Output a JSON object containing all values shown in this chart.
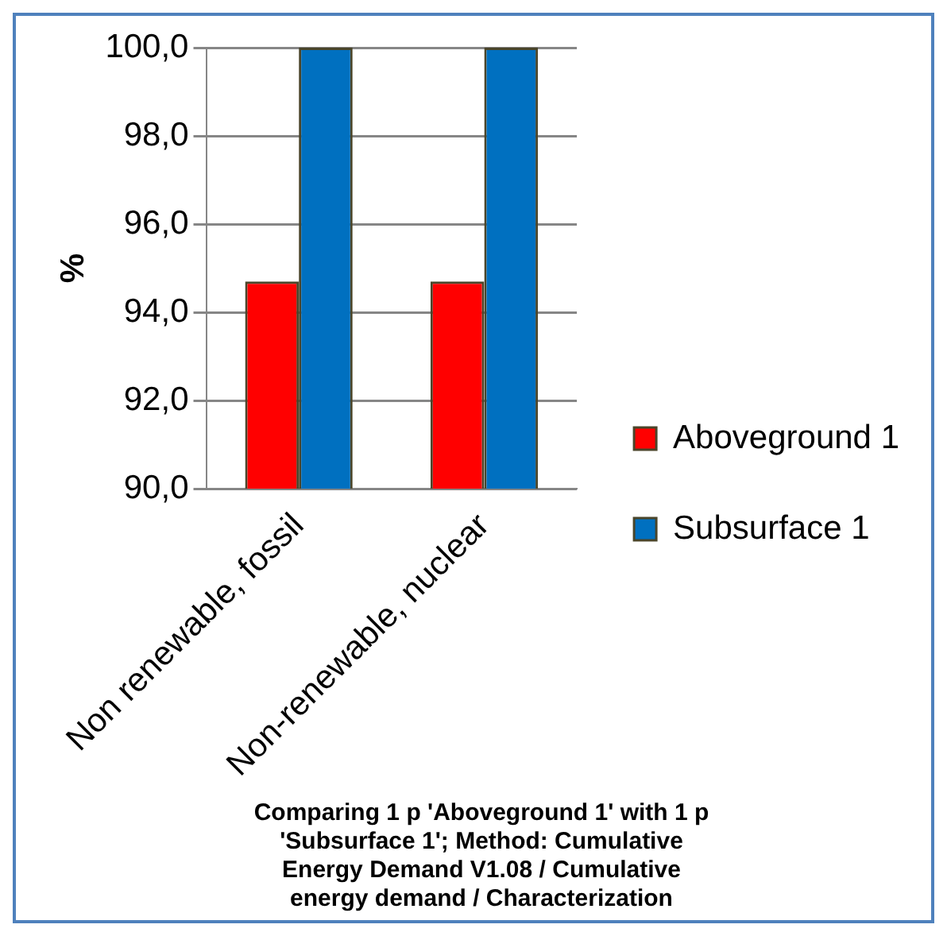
{
  "chart_data": {
    "type": "bar",
    "title": "Comparing 1 p 'Aboveground 1' with 1 p 'Subsurface 1'; Method: Cumulative Energy Demand V1.08 / Cumulative energy demand / Characterization",
    "ylabel": "%",
    "categories": [
      "Non renewable, fossil",
      "Non-renewable, nuclear"
    ],
    "series": [
      {
        "name": "Aboveground 1",
        "color": "#ff0000",
        "values": [
          94.7,
          94.7
        ]
      },
      {
        "name": "Subsurface 1",
        "color": "#0070c0",
        "values": [
          100,
          100
        ]
      }
    ],
    "ylim": [
      90,
      100
    ],
    "yticks": [
      {
        "value": 90,
        "label": "90,0"
      },
      {
        "value": 92,
        "label": "92,0"
      },
      {
        "value": 94,
        "label": "94,0"
      },
      {
        "value": 96,
        "label": "96,0"
      },
      {
        "value": 98,
        "label": "98,0"
      },
      {
        "value": 100,
        "label": "100,0"
      }
    ],
    "grid": "y",
    "legend": "right"
  }
}
